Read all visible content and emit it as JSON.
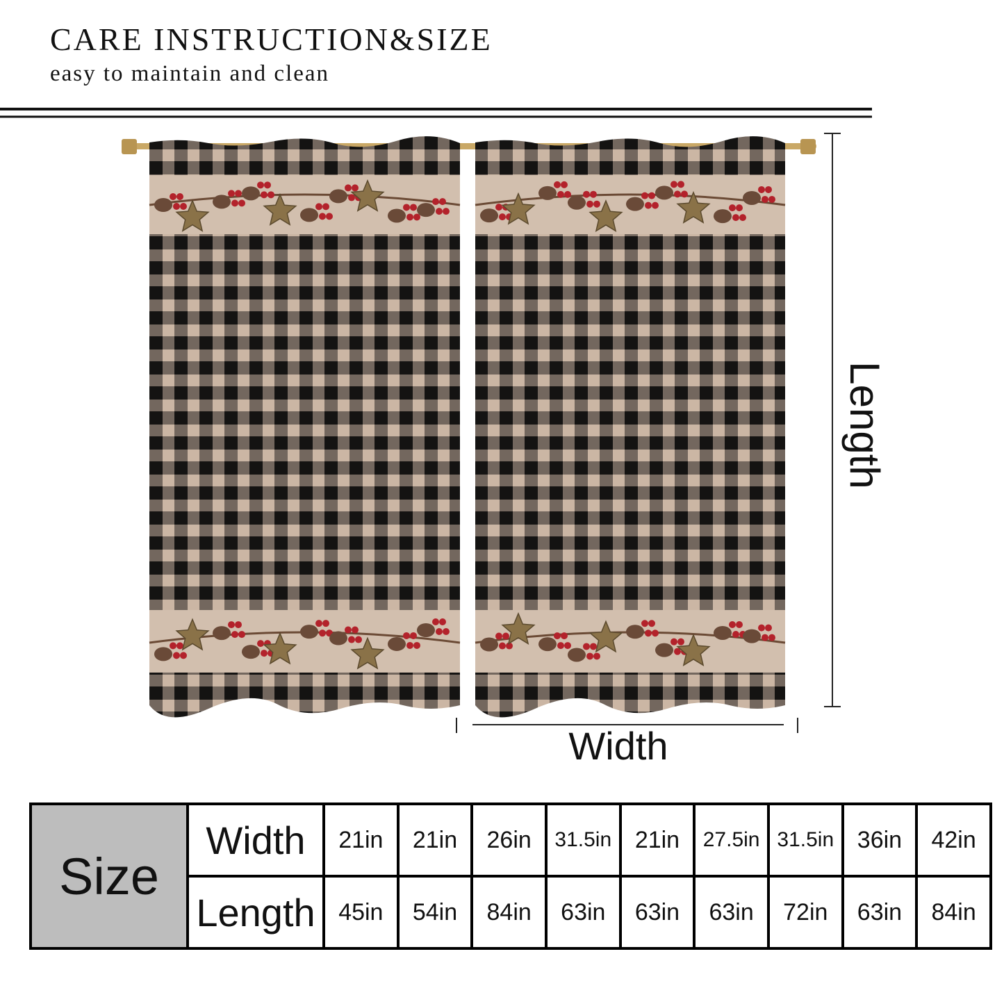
{
  "header": {
    "title": "CARE INSTRUCTION&SIZE",
    "subtitle": "easy to maintain and clean"
  },
  "diagram": {
    "length_label": "Length",
    "width_label": "Width"
  },
  "table": {
    "corner": "Size",
    "row_headers": [
      "Width",
      "Length"
    ],
    "rows": [
      [
        "21in",
        "21in",
        "26in",
        "31.5in",
        "21in",
        "27.5in",
        "31.5in",
        "36in",
        "42in"
      ],
      [
        "45in",
        "54in",
        "84in",
        "63in",
        "63in",
        "63in",
        "72in",
        "63in",
        "84in"
      ]
    ]
  }
}
